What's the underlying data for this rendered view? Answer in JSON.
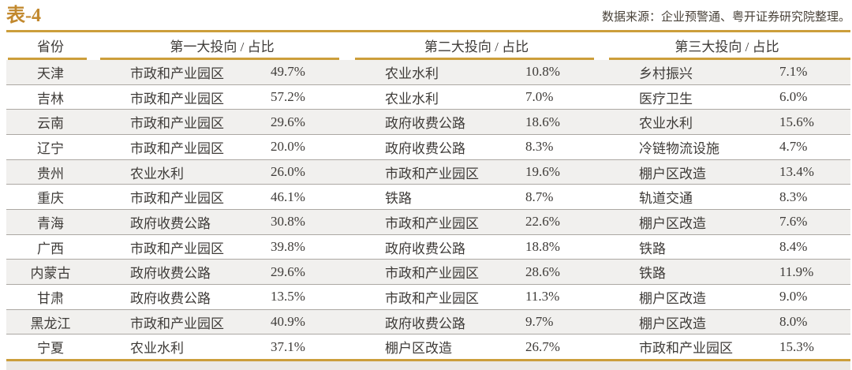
{
  "title": "表-4",
  "source_note": "数据来源：企业预警通、粤开证券研究院整理。",
  "chart_data": {
    "type": "table",
    "title": "表-4",
    "columns": [
      "省份",
      "第一大投向 / 占比",
      "第二大投向 / 占比",
      "第三大投向 / 占比"
    ],
    "rows": [
      {
        "province": "天津",
        "inv1": "市政和产业园区",
        "pct1": "49.7%",
        "inv2": "农业水利",
        "pct2": "10.8%",
        "inv3": "乡村振兴",
        "pct3": "7.1%"
      },
      {
        "province": "吉林",
        "inv1": "市政和产业园区",
        "pct1": "57.2%",
        "inv2": "农业水利",
        "pct2": "7.0%",
        "inv3": "医疗卫生",
        "pct3": "6.0%"
      },
      {
        "province": "云南",
        "inv1": "市政和产业园区",
        "pct1": "29.6%",
        "inv2": "政府收费公路",
        "pct2": "18.6%",
        "inv3": "农业水利",
        "pct3": "15.6%"
      },
      {
        "province": "辽宁",
        "inv1": "市政和产业园区",
        "pct1": "20.0%",
        "inv2": "政府收费公路",
        "pct2": "8.3%",
        "inv3": "冷链物流设施",
        "pct3": "4.7%"
      },
      {
        "province": "贵州",
        "inv1": "农业水利",
        "pct1": "26.0%",
        "inv2": "市政和产业园区",
        "pct2": "19.6%",
        "inv3": "棚户区改造",
        "pct3": "13.4%"
      },
      {
        "province": "重庆",
        "inv1": "市政和产业园区",
        "pct1": "46.1%",
        "inv2": "铁路",
        "pct2": "8.7%",
        "inv3": "轨道交通",
        "pct3": "8.3%"
      },
      {
        "province": "青海",
        "inv1": "政府收费公路",
        "pct1": "30.8%",
        "inv2": "市政和产业园区",
        "pct2": "22.6%",
        "inv3": "棚户区改造",
        "pct3": "7.6%"
      },
      {
        "province": "广西",
        "inv1": "市政和产业园区",
        "pct1": "39.8%",
        "inv2": "政府收费公路",
        "pct2": "18.8%",
        "inv3": "铁路",
        "pct3": "8.4%"
      },
      {
        "province": "内蒙古",
        "inv1": "政府收费公路",
        "pct1": "29.6%",
        "inv2": "市政和产业园区",
        "pct2": "28.6%",
        "inv3": "铁路",
        "pct3": "11.9%"
      },
      {
        "province": "甘肃",
        "inv1": "政府收费公路",
        "pct1": "13.5%",
        "inv2": "市政和产业园区",
        "pct2": "11.3%",
        "inv3": "棚户区改造",
        "pct3": "9.0%"
      },
      {
        "province": "黑龙江",
        "inv1": "市政和产业园区",
        "pct1": "40.9%",
        "inv2": "政府收费公路",
        "pct2": "9.7%",
        "inv3": "棚户区改造",
        "pct3": "8.0%"
      },
      {
        "province": "宁夏",
        "inv1": "农业水利",
        "pct1": "37.1%",
        "inv2": "棚户区改造",
        "pct2": "26.7%",
        "inv3": "市政和产业园区",
        "pct3": "15.3%"
      }
    ]
  },
  "colors": {
    "accent_gold": "#CC9E3B",
    "title_gold": "#C2892E",
    "row_stripe": "#F1F0EE",
    "row_separator": "#ACA8A3",
    "body_text": "#3E3B38",
    "source_text": "#494239"
  }
}
